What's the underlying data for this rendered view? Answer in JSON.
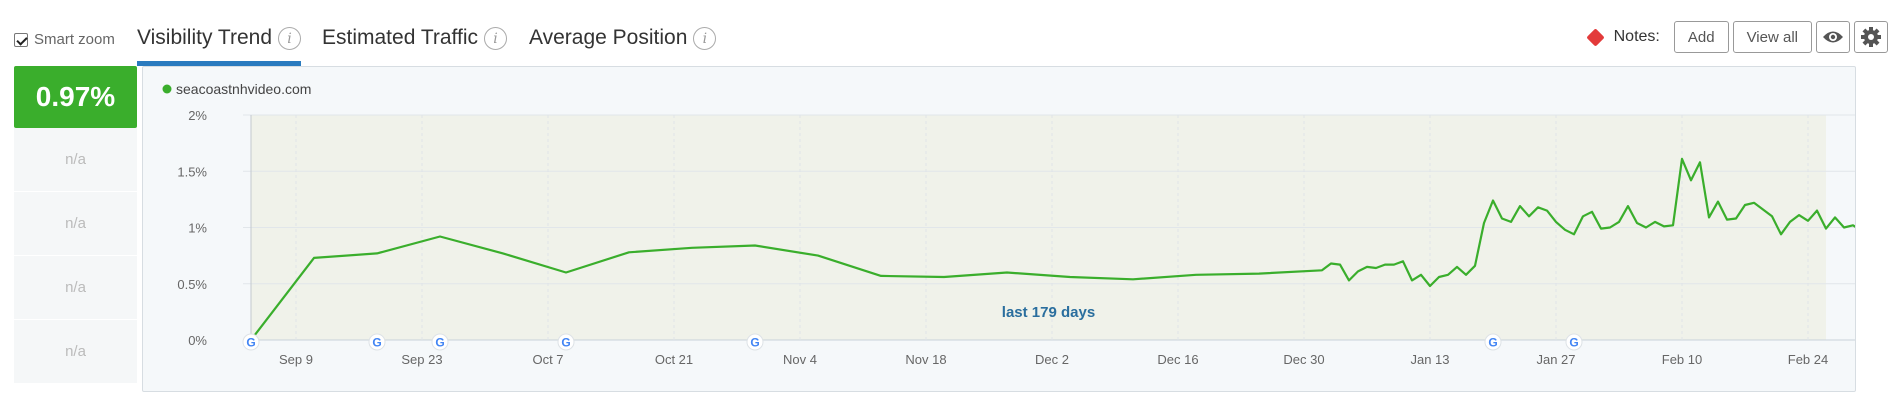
{
  "smart_zoom": {
    "label": "Smart zoom",
    "checked": true
  },
  "tabs": [
    {
      "label": "Visibility Trend",
      "active": true
    },
    {
      "label": "Estimated Traffic",
      "active": false
    },
    {
      "label": "Average Position",
      "active": false
    }
  ],
  "notes": {
    "label": "Notes:",
    "add_label": "Add",
    "view_all_label": "View all",
    "eye_icon": "eye-icon",
    "settings_icon": "gear-icon"
  },
  "left_panel": {
    "main_value": "0.97%",
    "rows": [
      "n/a",
      "n/a",
      "n/a",
      "n/a"
    ]
  },
  "colors": {
    "accent": "#2a7bbf",
    "series": "#3aae2c",
    "notes": "#e33a3a",
    "range_label": "#2a6e9e"
  },
  "chart_data": {
    "type": "line",
    "legend": "seacoastnhvideo.com",
    "range_label": "last 179 days",
    "ylim": [
      0,
      2
    ],
    "y_ticks": [
      {
        "v": 0,
        "label": "0%"
      },
      {
        "v": 0.5,
        "label": "0.5%"
      },
      {
        "v": 1,
        "label": "1%"
      },
      {
        "v": 1.5,
        "label": "1.5%"
      },
      {
        "v": 2,
        "label": "2%"
      }
    ],
    "x_ticks": [
      "Sep 9",
      "Sep 23",
      "Oct 7",
      "Oct 21",
      "Nov 4",
      "Nov 18",
      "Dec 2",
      "Dec 16",
      "Dec 30",
      "Jan 13",
      "Jan 27",
      "Feb 10",
      "Feb 24"
    ],
    "x_range_days": [
      -5,
      170
    ],
    "google_updates_days": [
      -5,
      9,
      16,
      30,
      51,
      133,
      142
    ],
    "series": [
      {
        "name": "seacoastnhvideo.com",
        "points": [
          [
            -5,
            0.0
          ],
          [
            2,
            0.73
          ],
          [
            9,
            0.77
          ],
          [
            16,
            0.92
          ],
          [
            23,
            0.77
          ],
          [
            30,
            0.6
          ],
          [
            37,
            0.78
          ],
          [
            44,
            0.82
          ],
          [
            51,
            0.84
          ],
          [
            58,
            0.75
          ],
          [
            65,
            0.57
          ],
          [
            72,
            0.56
          ],
          [
            79,
            0.6
          ],
          [
            86,
            0.56
          ],
          [
            93,
            0.54
          ],
          [
            100,
            0.58
          ],
          [
            107,
            0.59
          ],
          [
            114,
            0.62
          ],
          [
            115,
            0.68
          ],
          [
            116,
            0.67
          ],
          [
            117,
            0.53
          ],
          [
            118,
            0.61
          ],
          [
            119,
            0.65
          ],
          [
            120,
            0.64
          ],
          [
            121,
            0.67
          ],
          [
            122,
            0.67
          ],
          [
            123,
            0.7
          ],
          [
            124,
            0.53
          ],
          [
            125,
            0.58
          ],
          [
            126,
            0.48
          ],
          [
            127,
            0.56
          ],
          [
            128,
            0.58
          ],
          [
            129,
            0.65
          ],
          [
            130,
            0.58
          ],
          [
            131,
            0.66
          ],
          [
            132,
            1.04
          ],
          [
            133,
            1.24
          ],
          [
            134,
            1.08
          ],
          [
            135,
            1.05
          ],
          [
            136,
            1.19
          ],
          [
            137,
            1.1
          ],
          [
            138,
            1.18
          ],
          [
            139,
            1.15
          ],
          [
            140,
            1.05
          ],
          [
            141,
            0.98
          ],
          [
            142,
            0.94
          ],
          [
            143,
            1.1
          ],
          [
            144,
            1.14
          ],
          [
            145,
            0.99
          ],
          [
            146,
            1.0
          ],
          [
            147,
            1.05
          ],
          [
            148,
            1.19
          ],
          [
            149,
            1.04
          ],
          [
            150,
            1.0
          ],
          [
            151,
            1.05
          ],
          [
            152,
            1.01
          ],
          [
            153,
            1.02
          ],
          [
            154,
            1.61
          ],
          [
            155,
            1.42
          ],
          [
            156,
            1.58
          ],
          [
            157,
            1.09
          ],
          [
            158,
            1.23
          ],
          [
            159,
            1.07
          ],
          [
            160,
            1.08
          ],
          [
            161,
            1.2
          ],
          [
            162,
            1.22
          ],
          [
            163,
            1.16
          ],
          [
            164,
            1.1
          ],
          [
            165,
            0.94
          ],
          [
            166,
            1.05
          ],
          [
            167,
            1.11
          ],
          [
            168,
            1.06
          ],
          [
            169,
            1.15
          ],
          [
            170,
            0.99
          ],
          [
            171,
            1.09
          ],
          [
            172,
            1.0
          ],
          [
            173,
            1.02
          ],
          [
            174,
            0.97
          ]
        ]
      }
    ]
  }
}
